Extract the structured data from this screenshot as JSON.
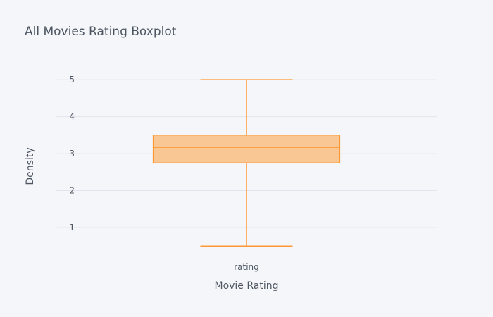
{
  "colors": {
    "background": "#f5f6f9",
    "box_fill": "#f9c48e",
    "box_stroke": "#ff9933",
    "grid": "#e1e5ed",
    "text": "#4d5663"
  },
  "chart_data": {
    "type": "box",
    "title": "All Movies Rating Boxplot",
    "xlabel": "Movie Rating",
    "ylabel": "Density",
    "categories": [
      "rating"
    ],
    "ylim": [
      0.2,
      5.25
    ],
    "yticks": [
      1,
      2,
      3,
      4,
      5
    ],
    "series": [
      {
        "category": "rating",
        "min": 0.5,
        "q1": 2.75,
        "median": 3.17,
        "q3": 3.5,
        "max": 5.0
      }
    ],
    "grid": true,
    "legend": "none"
  }
}
